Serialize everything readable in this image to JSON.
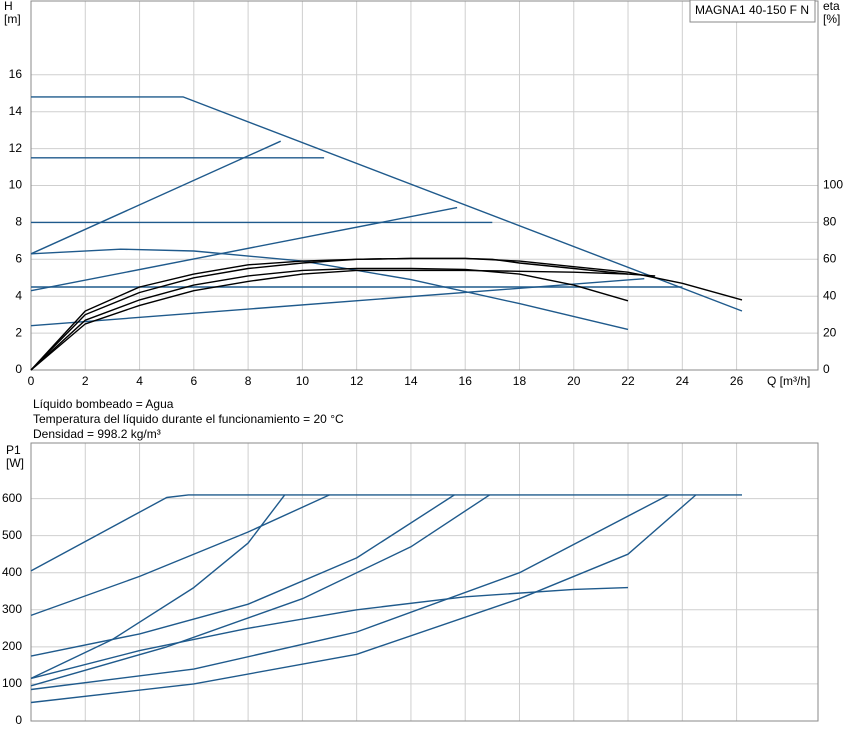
{
  "chart_data": [
    {
      "type": "line",
      "title": "MAGNA1 40-150 F N",
      "y_label": "H",
      "y_unit": "[m]",
      "y2_label": "eta",
      "y2_unit": "[%]",
      "x_label": "Q [m³/h]",
      "xlim": [
        0,
        29
      ],
      "ylim": [
        0,
        20
      ],
      "y2lim": [
        0,
        200
      ],
      "xticks": [
        0,
        2,
        4,
        6,
        8,
        10,
        12,
        14,
        16,
        18,
        20,
        22,
        24,
        26
      ],
      "yticks": [
        0,
        2,
        4,
        6,
        8,
        10,
        12,
        14,
        16
      ],
      "y2ticks": [
        0,
        20,
        40,
        60,
        80,
        100
      ],
      "grid": true,
      "series": [
        {
          "color": "#1f5a8c",
          "x": [
            0,
            5.6,
            26.2
          ],
          "values": [
            14.8,
            14.8,
            3.2
          ]
        },
        {
          "color": "#1f5a8c",
          "x": [
            0,
            10.8
          ],
          "values": [
            11.5,
            11.5
          ]
        },
        {
          "color": "#1f5a8c",
          "x": [
            0,
            17
          ],
          "values": [
            8,
            8
          ]
        },
        {
          "color": "#1f5a8c",
          "x": [
            0,
            24
          ],
          "values": [
            4.5,
            4.5
          ]
        },
        {
          "color": "#1f5a8c",
          "x": [
            0,
            9.2
          ],
          "values": [
            6.3,
            12.4
          ]
        },
        {
          "color": "#1f5a8c",
          "x": [
            0,
            15.7
          ],
          "values": [
            4.3,
            8.8
          ]
        },
        {
          "color": "#1f5a8c",
          "x": [
            0,
            22.6
          ],
          "values": [
            2.4,
            4.95
          ]
        },
        {
          "color": "#1f5a8c",
          "x": [
            0,
            3.3,
            6,
            10,
            14,
            18,
            22
          ],
          "values": [
            6.3,
            6.55,
            6.45,
            5.9,
            4.9,
            3.6,
            2.2
          ]
        },
        {
          "color": "#000000",
          "axis": "y2",
          "x": [
            0,
            2,
            4,
            6,
            8,
            10,
            12,
            14,
            16,
            18,
            20,
            22,
            24,
            26.2
          ],
          "values": [
            0,
            30,
            42,
            50,
            55,
            58,
            60,
            60.5,
            60.5,
            59,
            56,
            53,
            47,
            38
          ]
        },
        {
          "color": "#000000",
          "axis": "y2",
          "x": [
            0,
            2,
            4,
            6,
            8,
            10,
            12,
            14,
            16,
            18,
            20,
            22
          ],
          "values": [
            0,
            27,
            38,
            46,
            51,
            54,
            55,
            55,
            54.5,
            52,
            46,
            37.5
          ]
        },
        {
          "color": "#000000",
          "axis": "y2",
          "x": [
            0,
            2,
            4,
            6,
            8,
            10,
            12,
            14,
            16,
            18,
            20,
            22,
            23
          ],
          "values": [
            0,
            25,
            35,
            43,
            48,
            52,
            54,
            54,
            54,
            53.5,
            53,
            52,
            51
          ]
        },
        {
          "color": "#000000",
          "axis": "y2",
          "x": [
            0,
            2,
            4,
            6,
            8,
            10,
            12,
            14,
            16,
            17,
            18,
            20,
            22
          ],
          "values": [
            0,
            32,
            45,
            52,
            57,
            59,
            60,
            60.5,
            60.5,
            60,
            58,
            55,
            52
          ]
        }
      ]
    },
    {
      "type": "line",
      "notes": [
        "Líquido bombeado = Agua",
        "Temperatura del líquido durante el funcionamiento = 20 °C",
        "Densidad = 998.2 kg/m³"
      ],
      "y_label": "P1",
      "y_unit": "[W]",
      "xlim": [
        0,
        29
      ],
      "ylim": [
        0,
        750
      ],
      "yticks": [
        0,
        100,
        200,
        300,
        400,
        500,
        600
      ],
      "grid": true,
      "series": [
        {
          "color": "#1f5a8c",
          "x": [
            0,
            5,
            5.8,
            26.2
          ],
          "values": [
            405,
            603,
            610,
            610
          ]
        },
        {
          "color": "#1f5a8c",
          "x": [
            0,
            4,
            8,
            11
          ],
          "values": [
            285,
            390,
            510,
            610
          ]
        },
        {
          "color": "#1f5a8c",
          "x": [
            0,
            3,
            6,
            8,
            9.35
          ],
          "values": [
            115,
            220,
            360,
            480,
            610
          ]
        },
        {
          "color": "#1f5a8c",
          "x": [
            0,
            4,
            8,
            12,
            15.6
          ],
          "values": [
            175,
            235,
            315,
            440,
            610
          ]
        },
        {
          "color": "#1f5a8c",
          "x": [
            0,
            5,
            10,
            14,
            16.9
          ],
          "values": [
            95,
            200,
            330,
            470,
            610
          ]
        },
        {
          "color": "#1f5a8c",
          "x": [
            0,
            6,
            12,
            18,
            23.5
          ],
          "values": [
            85,
            140,
            240,
            400,
            610
          ]
        },
        {
          "color": "#1f5a8c",
          "x": [
            0,
            6,
            12,
            18,
            22,
            24.5
          ],
          "values": [
            50,
            100,
            180,
            330,
            450,
            610
          ]
        },
        {
          "color": "#1f5a8c",
          "x": [
            0,
            4,
            8,
            12,
            16,
            20,
            22
          ],
          "values": [
            115,
            190,
            250,
            300,
            335,
            355,
            360
          ]
        }
      ]
    }
  ]
}
